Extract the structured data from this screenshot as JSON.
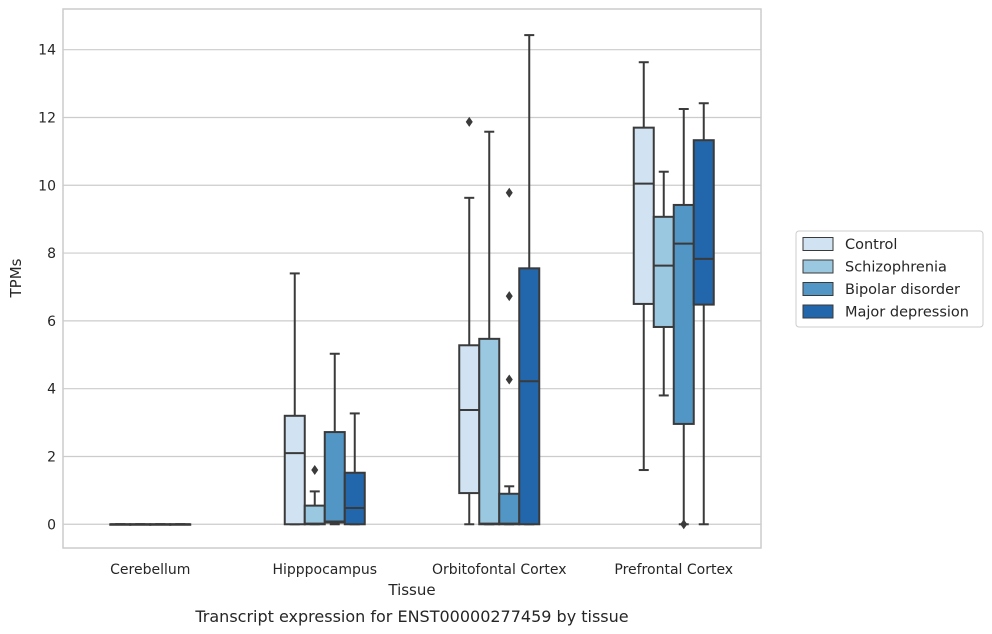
{
  "chart_data": {
    "type": "box",
    "title": "",
    "caption": "Transcript expression for ENST00000277459 by tissue",
    "xlabel": "Tissue",
    "ylabel": "TPMs",
    "ylim": [
      -0.7,
      15.2
    ],
    "yticks": [
      "0",
      "2",
      "4",
      "6",
      "8",
      "10",
      "12",
      "14"
    ],
    "categories": [
      "Cerebellum",
      "Hipppocampus",
      "Orbitofontal Cortex",
      "Prefrontal Cortex"
    ],
    "grid": true,
    "legend_position": "right",
    "series": [
      {
        "name": "Control",
        "color": "#d1e2f2",
        "boxes": [
          {
            "min": 0,
            "q1": 0,
            "median": 0,
            "q3": 0,
            "max": 0,
            "outliers": []
          },
          {
            "min": 0,
            "q1": 0,
            "median": 2.1,
            "q3": 3.2,
            "max": 7.4,
            "outliers": []
          },
          {
            "min": 0,
            "q1": 0.92,
            "median": 3.37,
            "q3": 5.28,
            "max": 9.63,
            "outliers": [
              11.87
            ]
          },
          {
            "min": 1.6,
            "q1": 6.5,
            "median": 10.05,
            "q3": 11.7,
            "max": 13.63,
            "outliers": []
          }
        ]
      },
      {
        "name": "Schizophrenia",
        "color": "#9ac8e0",
        "boxes": [
          {
            "min": 0,
            "q1": 0,
            "median": 0,
            "q3": 0,
            "max": 0,
            "outliers": []
          },
          {
            "min": 0,
            "q1": 0,
            "median": 0.02,
            "q3": 0.55,
            "max": 0.97,
            "outliers": [
              1.6
            ]
          },
          {
            "min": 0,
            "q1": 0,
            "median": 0.02,
            "q3": 5.47,
            "max": 11.58,
            "outliers": []
          },
          {
            "min": 3.8,
            "q1": 5.82,
            "median": 7.63,
            "q3": 9.07,
            "max": 10.4,
            "outliers": []
          }
        ]
      },
      {
        "name": "Bipolar disorder",
        "color": "#5296c5",
        "boxes": [
          {
            "min": 0,
            "q1": 0,
            "median": 0,
            "q3": 0,
            "max": 0,
            "outliers": []
          },
          {
            "min": 0,
            "q1": 0.05,
            "median": 0.08,
            "q3": 2.72,
            "max": 5.03,
            "outliers": []
          },
          {
            "min": 0,
            "q1": 0,
            "median": 0.02,
            "q3": 0.9,
            "max": 1.12,
            "outliers": [
              4.27,
              6.73,
              9.78
            ]
          },
          {
            "min": 0,
            "q1": 2.96,
            "median": 8.28,
            "q3": 9.42,
            "max": 12.25,
            "outliers": [
              0
            ]
          }
        ]
      },
      {
        "name": "Major depression",
        "color": "#2266ac",
        "boxes": [
          {
            "min": 0,
            "q1": 0,
            "median": 0,
            "q3": 0,
            "max": 0,
            "outliers": []
          },
          {
            "min": 0,
            "q1": 0,
            "median": 0.48,
            "q3": 1.52,
            "max": 3.27,
            "outliers": []
          },
          {
            "min": 0,
            "q1": 0,
            "median": 4.22,
            "q3": 7.55,
            "max": 14.43,
            "outliers": []
          },
          {
            "min": 0,
            "q1": 6.48,
            "median": 7.83,
            "q3": 11.33,
            "max": 12.42,
            "outliers": []
          }
        ]
      }
    ]
  }
}
